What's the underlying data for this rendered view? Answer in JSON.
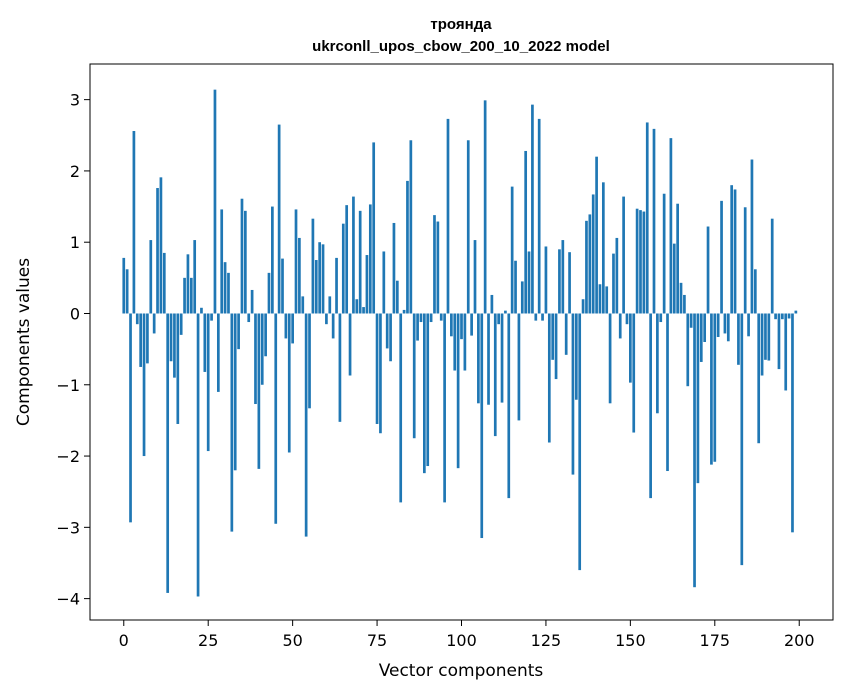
{
  "chart_data": {
    "type": "bar",
    "title": "троянда",
    "subtitle": "ukrconll_upos_cbow_200_10_2022 model",
    "xlabel": "Vector components",
    "ylabel": "Components values",
    "xlim": [
      -10,
      210
    ],
    "ylim": [
      -4.3,
      3.5
    ],
    "xticks": [
      0,
      25,
      50,
      75,
      100,
      125,
      150,
      175,
      200
    ],
    "yticks": [
      -4,
      -3,
      -2,
      -1,
      0,
      1,
      2,
      3
    ],
    "xtick_labels": [
      "0",
      "25",
      "50",
      "75",
      "100",
      "125",
      "150",
      "175",
      "200"
    ],
    "ytick_labels": [
      "−4",
      "−3",
      "−2",
      "−1",
      "0",
      "1",
      "2",
      "3"
    ],
    "bar_color": "#1f77b4",
    "grid": false,
    "x": [
      0,
      1,
      2,
      3,
      4,
      5,
      6,
      7,
      8,
      9,
      10,
      11,
      12,
      13,
      14,
      15,
      16,
      17,
      18,
      19,
      20,
      21,
      22,
      23,
      24,
      25,
      26,
      27,
      28,
      29,
      30,
      31,
      32,
      33,
      34,
      35,
      36,
      37,
      38,
      39,
      40,
      41,
      42,
      43,
      44,
      45,
      46,
      47,
      48,
      49,
      50,
      51,
      52,
      53,
      54,
      55,
      56,
      57,
      58,
      59,
      60,
      61,
      62,
      63,
      64,
      65,
      66,
      67,
      68,
      69,
      70,
      71,
      72,
      73,
      74,
      75,
      76,
      77,
      78,
      79,
      80,
      81,
      82,
      83,
      84,
      85,
      86,
      87,
      88,
      89,
      90,
      91,
      92,
      93,
      94,
      95,
      96,
      97,
      98,
      99,
      100,
      101,
      102,
      103,
      104,
      105,
      106,
      107,
      108,
      109,
      110,
      111,
      112,
      113,
      114,
      115,
      116,
      117,
      118,
      119,
      120,
      121,
      122,
      123,
      124,
      125,
      126,
      127,
      128,
      129,
      130,
      131,
      132,
      133,
      134,
      135,
      136,
      137,
      138,
      139,
      140,
      141,
      142,
      143,
      144,
      145,
      146,
      147,
      148,
      149,
      150,
      151,
      152,
      153,
      154,
      155,
      156,
      157,
      158,
      159,
      160,
      161,
      162,
      163,
      164,
      165,
      166,
      167,
      168,
      169,
      170,
      171,
      172,
      173,
      174,
      175,
      176,
      177,
      178,
      179,
      180,
      181,
      182,
      183,
      184,
      185,
      186,
      187,
      188,
      189,
      190,
      191,
      192,
      193,
      194,
      195,
      196,
      197,
      198,
      199
    ],
    "values": [
      0.78,
      0.62,
      -2.93,
      2.56,
      -0.15,
      -0.75,
      -2.0,
      -0.7,
      1.03,
      -0.28,
      1.76,
      1.91,
      0.85,
      -3.92,
      -0.67,
      -0.9,
      -1.55,
      -0.3,
      0.5,
      0.83,
      0.5,
      1.03,
      -3.97,
      0.08,
      -0.82,
      -1.93,
      -0.1,
      3.14,
      -1.1,
      1.46,
      0.72,
      0.57,
      -3.06,
      -2.2,
      -0.5,
      1.61,
      1.44,
      -0.12,
      0.33,
      -1.27,
      -2.18,
      -1.0,
      -0.6,
      0.57,
      1.5,
      -2.95,
      2.65,
      0.77,
      -0.35,
      -1.95,
      -0.42,
      1.46,
      1.06,
      0.24,
      -3.13,
      -1.33,
      1.33,
      0.75,
      1.0,
      0.97,
      -0.15,
      0.24,
      -0.35,
      0.78,
      -1.52,
      1.26,
      1.52,
      -0.87,
      1.64,
      0.2,
      1.44,
      0.09,
      0.82,
      1.53,
      2.4,
      -1.55,
      -1.68,
      0.87,
      -0.49,
      -0.67,
      1.27,
      0.46,
      -2.65,
      0.05,
      1.86,
      2.43,
      -1.75,
      -0.38,
      -0.12,
      -2.24,
      -2.14,
      -0.12,
      1.38,
      1.29,
      -0.1,
      -2.65,
      2.73,
      -0.32,
      -0.8,
      -2.17,
      -0.36,
      -0.8,
      2.43,
      -0.31,
      1.03,
      -1.26,
      -3.15,
      2.99,
      -1.28,
      0.26,
      -1.72,
      -0.15,
      -1.25,
      0.04,
      -2.59,
      1.78,
      0.74,
      -1.5,
      0.45,
      2.28,
      0.87,
      2.93,
      -0.1,
      2.73,
      -0.1,
      0.94,
      -1.81,
      -0.65,
      -0.92,
      0.9,
      1.03,
      -0.58,
      0.86,
      -2.26,
      -1.21,
      -3.6,
      0.2,
      1.3,
      1.39,
      1.67,
      2.2,
      0.41,
      1.84,
      0.38,
      -1.26,
      0.84,
      1.06,
      -0.35,
      1.64,
      -0.15,
      -0.97,
      -1.67,
      1.47,
      1.45,
      1.43,
      2.68,
      -2.59,
      2.59,
      -1.4,
      -0.12,
      1.68,
      -2.21,
      2.46,
      0.98,
      1.54,
      0.43,
      0.26,
      -1.02,
      -0.2,
      -3.84,
      -2.38,
      -0.68,
      -0.4,
      1.22,
      -2.12,
      -2.08,
      -0.33,
      1.58,
      -0.28,
      -0.39,
      1.8,
      1.74,
      -0.72,
      -3.53,
      1.49,
      -0.32,
      2.16,
      0.62,
      -1.82,
      -0.87,
      -0.65,
      -0.66,
      1.33,
      -0.08,
      -0.78,
      -0.08,
      -1.08,
      -0.07,
      -3.07,
      0.04
    ]
  }
}
